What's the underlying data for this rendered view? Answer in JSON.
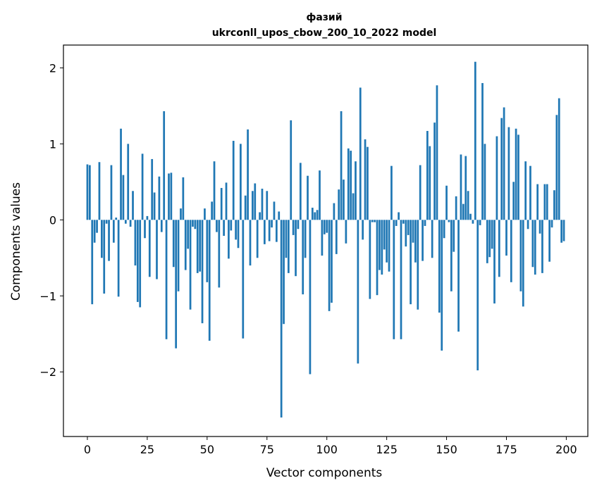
{
  "chart_data": {
    "type": "bar",
    "title": "фазий",
    "subtitle": "ukrconll_upos_cbow_200_10_2022 model",
    "xlabel": "Vector components",
    "ylabel": "Components values",
    "xlim": [
      -10,
      209
    ],
    "ylim": [
      -2.85,
      2.3
    ],
    "xticks": [
      0,
      25,
      50,
      75,
      100,
      125,
      150,
      175,
      200
    ],
    "xtick_labels": [
      "0",
      "25",
      "50",
      "75",
      "100",
      "125",
      "150",
      "175",
      "200"
    ],
    "yticks": [
      -2,
      -1,
      0,
      1,
      2
    ],
    "ytick_labels": [
      "−2",
      "−1",
      "0",
      "1",
      "2"
    ],
    "bar_color": "#1f77b4",
    "grid": false,
    "x": [
      0,
      1,
      2,
      3,
      4,
      5,
      6,
      7,
      8,
      9,
      10,
      11,
      12,
      13,
      14,
      15,
      16,
      17,
      18,
      19,
      20,
      21,
      22,
      23,
      24,
      25,
      26,
      27,
      28,
      29,
      30,
      31,
      32,
      33,
      34,
      35,
      36,
      37,
      38,
      39,
      40,
      41,
      42,
      43,
      44,
      45,
      46,
      47,
      48,
      49,
      50,
      51,
      52,
      53,
      54,
      55,
      56,
      57,
      58,
      59,
      60,
      61,
      62,
      63,
      64,
      65,
      66,
      67,
      68,
      69,
      70,
      71,
      72,
      73,
      74,
      75,
      76,
      77,
      78,
      79,
      80,
      81,
      82,
      83,
      84,
      85,
      86,
      87,
      88,
      89,
      90,
      91,
      92,
      93,
      94,
      95,
      96,
      97,
      98,
      99,
      100,
      101,
      102,
      103,
      104,
      105,
      106,
      107,
      108,
      109,
      110,
      111,
      112,
      113,
      114,
      115,
      116,
      117,
      118,
      119,
      120,
      121,
      122,
      123,
      124,
      125,
      126,
      127,
      128,
      129,
      130,
      131,
      132,
      133,
      134,
      135,
      136,
      137,
      138,
      139,
      140,
      141,
      142,
      143,
      144,
      145,
      146,
      147,
      148,
      149,
      150,
      151,
      152,
      153,
      154,
      155,
      156,
      157,
      158,
      159,
      160,
      161,
      162,
      163,
      164,
      165,
      166,
      167,
      168,
      169,
      170,
      171,
      172,
      173,
      174,
      175,
      176,
      177,
      178,
      179,
      180,
      181,
      182,
      183,
      184,
      185,
      186,
      187,
      188,
      189,
      190,
      191,
      192,
      193,
      194,
      195,
      196,
      197,
      198,
      199
    ],
    "values": [
      0.73,
      0.72,
      -1.11,
      -0.3,
      -0.17,
      0.76,
      -0.5,
      -0.97,
      -0.05,
      -0.54,
      0.72,
      -0.3,
      0.03,
      -1.01,
      1.2,
      0.59,
      -0.05,
      1.0,
      -0.09,
      0.38,
      -0.6,
      -1.08,
      -1.15,
      0.87,
      -0.24,
      0.05,
      -0.75,
      0.8,
      0.36,
      -0.78,
      0.57,
      -0.16,
      1.43,
      -1.57,
      0.61,
      0.62,
      -0.62,
      -1.69,
      -0.94,
      0.15,
      0.56,
      -0.66,
      -0.38,
      -1.18,
      -0.09,
      -0.12,
      -0.7,
      -0.68,
      -1.36,
      0.15,
      -0.82,
      -1.59,
      0.24,
      0.77,
      -0.16,
      -0.89,
      0.42,
      -0.21,
      0.49,
      -0.51,
      -0.14,
      1.04,
      -0.26,
      -0.37,
      1.0,
      -1.56,
      0.32,
      1.19,
      -0.6,
      0.38,
      0.48,
      -0.5,
      0.1,
      0.41,
      -0.32,
      0.38,
      -0.28,
      -0.1,
      0.24,
      -0.29,
      0.11,
      -2.6,
      -1.37,
      -0.5,
      -0.7,
      1.31,
      -0.2,
      -0.74,
      -0.12,
      0.75,
      -0.98,
      -0.5,
      0.58,
      -2.03,
      0.16,
      0.1,
      0.13,
      0.65,
      -0.47,
      -0.19,
      -0.17,
      -1.2,
      -1.09,
      0.22,
      -0.45,
      0.4,
      1.43,
      0.53,
      -0.31,
      0.94,
      0.91,
      0.35,
      0.77,
      -1.89,
      1.74,
      -0.26,
      1.06,
      0.96,
      -1.04,
      -0.03,
      -0.03,
      -0.99,
      -0.66,
      -0.72,
      -0.39,
      -0.56,
      -0.68,
      0.71,
      -1.57,
      -0.08,
      0.1,
      -1.57,
      -0.05,
      -0.35,
      -0.2,
      -1.11,
      -0.3,
      -0.56,
      -1.18,
      0.72,
      -0.54,
      -0.08,
      1.17,
      0.97,
      -0.5,
      1.28,
      1.77,
      -1.22,
      -1.72,
      -0.24,
      0.45,
      -0.03,
      -0.94,
      -0.42,
      0.31,
      -1.47,
      0.86,
      0.21,
      0.84,
      0.38,
      0.08,
      -0.05,
      2.08,
      -1.98,
      -0.07,
      1.8,
      1.0,
      -0.57,
      -0.49,
      -0.38,
      -1.1,
      1.1,
      -0.75,
      1.34,
      1.48,
      -0.47,
      1.22,
      -0.82,
      0.5,
      1.2,
      1.12,
      -0.94,
      -1.14,
      0.77,
      -0.12,
      0.71,
      -0.62,
      -0.72,
      0.47,
      -0.18,
      -0.7,
      0.47,
      0.47,
      -0.55,
      -0.1,
      0.39,
      1.38,
      1.6,
      -0.3,
      -0.28
    ]
  }
}
